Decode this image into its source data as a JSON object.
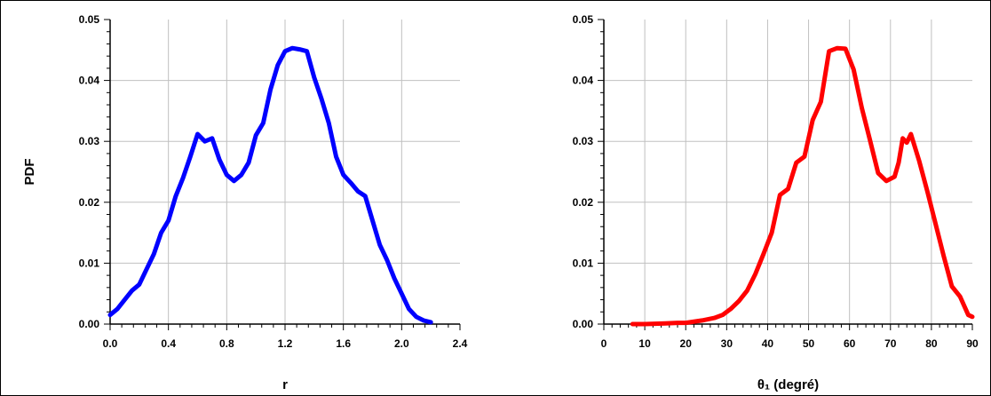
{
  "chart_data": [
    {
      "type": "line",
      "title": "",
      "xlabel": "r",
      "ylabel": "PDF",
      "xlim": [
        0.0,
        2.4
      ],
      "ylim": [
        0.0,
        0.05
      ],
      "xticks": [
        "0.0",
        "0.4",
        "0.8",
        "1.2",
        "1.6",
        "2.0",
        "2.4"
      ],
      "yticks": [
        "0.00",
        "0.01",
        "0.02",
        "0.03",
        "0.04",
        "0.05"
      ],
      "grid": true,
      "legend": "none",
      "series": [
        {
          "color": "#0000ff",
          "x": [
            0.0,
            0.05,
            0.1,
            0.15,
            0.2,
            0.25,
            0.3,
            0.35,
            0.4,
            0.45,
            0.5,
            0.55,
            0.6,
            0.65,
            0.7,
            0.75,
            0.8,
            0.85,
            0.9,
            0.95,
            1.0,
            1.05,
            1.1,
            1.15,
            1.2,
            1.25,
            1.3,
            1.35,
            1.4,
            1.45,
            1.5,
            1.55,
            1.6,
            1.65,
            1.7,
            1.75,
            1.8,
            1.85,
            1.9,
            1.95,
            2.0,
            2.05,
            2.1,
            2.15,
            2.2
          ],
          "y": [
            0.0015,
            0.0025,
            0.004,
            0.0055,
            0.0065,
            0.009,
            0.0115,
            0.015,
            0.017,
            0.021,
            0.024,
            0.0275,
            0.0312,
            0.03,
            0.0305,
            0.027,
            0.0245,
            0.0235,
            0.0245,
            0.0265,
            0.031,
            0.033,
            0.0385,
            0.0425,
            0.0448,
            0.0453,
            0.0451,
            0.0448,
            0.0405,
            0.037,
            0.033,
            0.0275,
            0.0245,
            0.0232,
            0.0218,
            0.021,
            0.017,
            0.013,
            0.0105,
            0.0075,
            0.005,
            0.0025,
            0.0012,
            0.0006,
            0.0003
          ]
        }
      ]
    },
    {
      "type": "line",
      "title": "",
      "xlabel": "θ₁ (degré)",
      "ylabel": "",
      "xlim": [
        0,
        90
      ],
      "ylim": [
        0.0,
        0.05
      ],
      "xticks": [
        "0",
        "10",
        "20",
        "30",
        "40",
        "50",
        "60",
        "70",
        "80",
        "90"
      ],
      "yticks": [
        "0.00",
        "0.01",
        "0.02",
        "0.03",
        "0.04",
        "0.05"
      ],
      "grid": true,
      "legend": "none",
      "series": [
        {
          "color": "#ff0000",
          "x": [
            7,
            10,
            15,
            18,
            20,
            24,
            27,
            29,
            31,
            33,
            35,
            37,
            39,
            41,
            43,
            45,
            47,
            49,
            51,
            53,
            55,
            57,
            59,
            61,
            63,
            65,
            67,
            69,
            71,
            72,
            73,
            74,
            75,
            77,
            79,
            81,
            83,
            85,
            87,
            89,
            90
          ],
          "y": [
            0.0,
            0.0,
            0.0001,
            0.0002,
            0.0002,
            0.0006,
            0.001,
            0.0015,
            0.0025,
            0.0038,
            0.0055,
            0.0082,
            0.0115,
            0.015,
            0.0212,
            0.0222,
            0.0265,
            0.0275,
            0.0335,
            0.0365,
            0.0448,
            0.0453,
            0.0452,
            0.0418,
            0.0355,
            0.0302,
            0.0248,
            0.0235,
            0.0242,
            0.0265,
            0.0305,
            0.0298,
            0.0312,
            0.0268,
            0.0218,
            0.0165,
            0.0112,
            0.0062,
            0.0045,
            0.0015,
            0.0012
          ]
        }
      ]
    }
  ]
}
